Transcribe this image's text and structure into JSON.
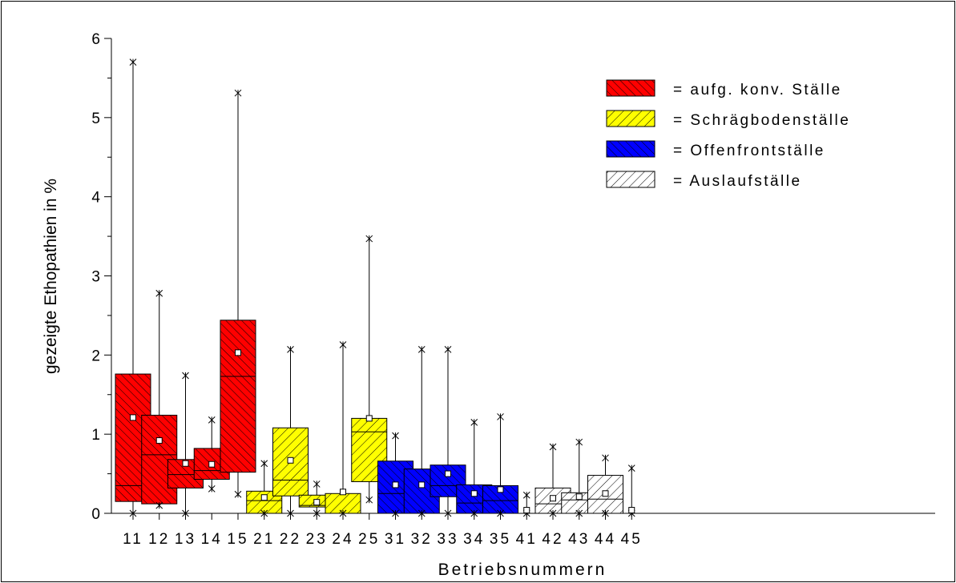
{
  "chart_data": {
    "type": "box",
    "xlabel": "Betriebsnummern",
    "ylabel": "gezeigte Ethopathien in %",
    "ylim": [
      0,
      6
    ],
    "yticks": [
      "0",
      "1",
      "2",
      "3",
      "4",
      "5",
      "6"
    ],
    "grid": false,
    "legend_position": "top-right",
    "legend": [
      {
        "label": "= aufg. konv. Ställe",
        "color": "#ff0000",
        "pattern": "hatch-dense"
      },
      {
        "label": "= Schrägbodenställe",
        "color": "#ffff00",
        "pattern": "hatch-wide"
      },
      {
        "label": "= Offenfrontställe",
        "color": "#0000ff",
        "pattern": "hatch-dense"
      },
      {
        "label": "= Auslaufställe",
        "color": "#ffffff",
        "pattern": "hatch-wide"
      }
    ],
    "boxes": [
      {
        "label": "11",
        "group": 0,
        "min": 0,
        "q1": 0.15,
        "median": 0.35,
        "q3": 1.76,
        "max": 5.7,
        "mean": 1.21
      },
      {
        "label": "12",
        "group": 0,
        "min": 0.1,
        "q1": 0.12,
        "median": 0.74,
        "q3": 1.24,
        "max": 2.78,
        "mean": 0.92
      },
      {
        "label": "13",
        "group": 0,
        "min": 0,
        "q1": 0.32,
        "median": 0.49,
        "q3": 0.68,
        "max": 1.74,
        "mean": 0.63
      },
      {
        "label": "14",
        "group": 0,
        "min": 0.31,
        "q1": 0.43,
        "median": 0.54,
        "q3": 0.82,
        "max": 1.18,
        "mean": 0.62
      },
      {
        "label": "15",
        "group": 0,
        "min": 0.24,
        "q1": 0.52,
        "median": 1.73,
        "q3": 2.44,
        "max": 5.31,
        "mean": 2.03
      },
      {
        "label": "21",
        "group": 1,
        "min": 0,
        "q1": 0,
        "median": 0.16,
        "q3": 0.28,
        "max": 0.63,
        "mean": 0.2
      },
      {
        "label": "22",
        "group": 1,
        "min": 0,
        "q1": 0.22,
        "median": 0.42,
        "q3": 1.08,
        "max": 2.07,
        "mean": 0.67
      },
      {
        "label": "23",
        "group": 1,
        "min": 0,
        "q1": 0.08,
        "median": 0.1,
        "q3": 0.23,
        "max": 0.37,
        "mean": 0.14
      },
      {
        "label": "24",
        "group": 1,
        "min": 0,
        "q1": 0,
        "median": 0,
        "q3": 0.25,
        "max": 2.13,
        "mean": 0.27
      },
      {
        "label": "25",
        "group": 1,
        "min": 0.17,
        "q1": 0.4,
        "median": 1.03,
        "q3": 1.2,
        "max": 3.47,
        "mean": 1.2
      },
      {
        "label": "31",
        "group": 2,
        "min": 0,
        "q1": 0,
        "median": 0.25,
        "q3": 0.66,
        "max": 0.98,
        "mean": 0.36
      },
      {
        "label": "32",
        "group": 2,
        "min": 0,
        "q1": 0,
        "median": 0,
        "q3": 0.56,
        "max": 2.07,
        "mean": 0.36
      },
      {
        "label": "33",
        "group": 2,
        "min": 0,
        "q1": 0.21,
        "median": 0.35,
        "q3": 0.61,
        "max": 2.07,
        "mean": 0.5
      },
      {
        "label": "34",
        "group": 2,
        "min": 0,
        "q1": 0,
        "median": 0.13,
        "q3": 0.36,
        "max": 1.15,
        "mean": 0.25
      },
      {
        "label": "35",
        "group": 2,
        "min": 0,
        "q1": 0,
        "median": 0.16,
        "q3": 0.35,
        "max": 1.22,
        "mean": 0.3
      },
      {
        "label": "41",
        "group": 3,
        "min": 0,
        "q1": 0,
        "median": 0,
        "q3": 0,
        "max": 0.23,
        "mean": 0.04
      },
      {
        "label": "42",
        "group": 3,
        "min": 0,
        "q1": 0,
        "median": 0.12,
        "q3": 0.32,
        "max": 0.84,
        "mean": 0.19
      },
      {
        "label": "43",
        "group": 3,
        "min": 0,
        "q1": 0,
        "median": 0.17,
        "q3": 0.26,
        "max": 0.9,
        "mean": 0.21
      },
      {
        "label": "44",
        "group": 3,
        "min": 0,
        "q1": 0,
        "median": 0.18,
        "q3": 0.48,
        "max": 0.7,
        "mean": 0.25
      },
      {
        "label": "45",
        "group": 3,
        "min": 0,
        "q1": 0,
        "median": 0,
        "q3": 0,
        "max": 0.57,
        "mean": 0.04
      }
    ]
  }
}
